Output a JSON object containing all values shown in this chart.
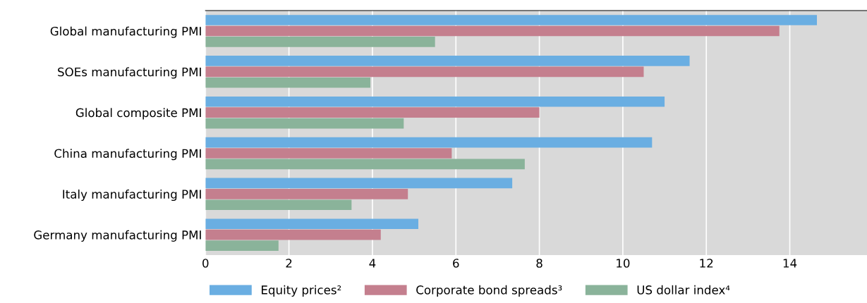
{
  "chart_data": {
    "type": "bar",
    "orientation": "horizontal",
    "categories": [
      "Global manufacturing PMI",
      "SOEs manufacturing PMI",
      "Global composite PMI",
      "China manufacturing PMI",
      "Italy manufacturing PMI",
      "Germany manufacturing PMI"
    ],
    "series": [
      {
        "name": "Equity prices²",
        "color": "#6aaee2",
        "values": [
          14.65,
          11.6,
          11.0,
          10.7,
          7.35,
          5.1
        ]
      },
      {
        "name": "Corporate bond spreads³",
        "color": "#c47f8e",
        "values": [
          13.75,
          10.5,
          8.0,
          5.9,
          4.85,
          4.2
        ]
      },
      {
        "name": "US dollar index⁴",
        "color": "#8ab39a",
        "values": [
          5.5,
          3.95,
          4.75,
          7.65,
          3.5,
          1.75
        ]
      }
    ],
    "xlim": [
      0,
      15.85
    ],
    "xticks": [
      0,
      2,
      4,
      6,
      8,
      10,
      12,
      14
    ],
    "grid": "x",
    "legend": "bottom"
  }
}
